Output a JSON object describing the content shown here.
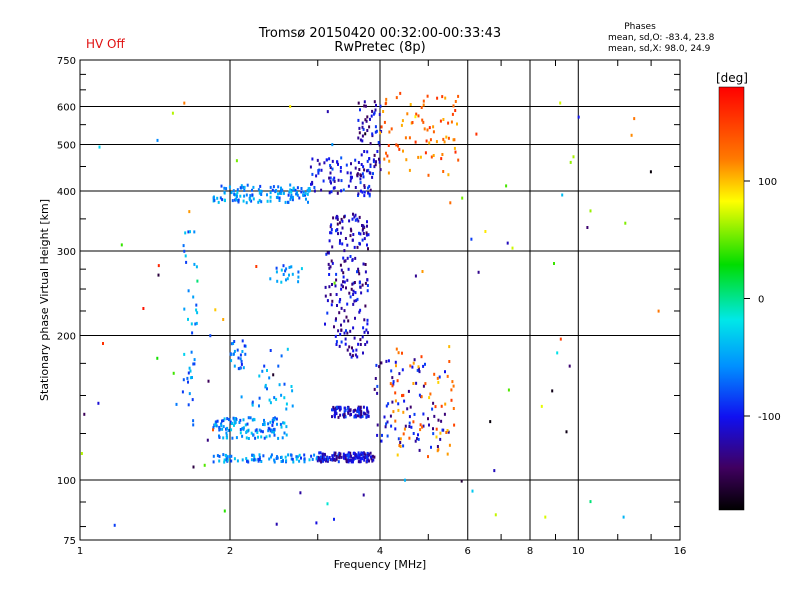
{
  "status": {
    "hv": "HV Off"
  },
  "header": {
    "title_line1": "Tromsø 20150420 00:32:00-00:33:43",
    "title_line2": "RwPretec (8p)"
  },
  "phases": {
    "heading": "Phases",
    "o_mode": "mean, sd,O:  -83.4, 23.8",
    "x_mode": "mean, sd,X:  98.0, 24.9"
  },
  "colorbar": {
    "unit": "[deg]",
    "ticks": [
      "100",
      "0",
      "-100"
    ],
    "tick_values": [
      100,
      0,
      -100
    ],
    "range": [
      -180,
      180
    ]
  },
  "chart_data": {
    "type": "scatter",
    "title": "Tromsø 20150420 00:32:00-00:33:43",
    "subtitle": "RwPretec (8p)",
    "xlabel": "Frequency [MHz]",
    "ylabel": "Stationary phase Virtual Height [km]",
    "x_scale": "log",
    "y_scale": "log",
    "xlim": [
      1,
      16
    ],
    "ylim": [
      75,
      750
    ],
    "x_ticks": [
      "1",
      "2",
      "4",
      "6",
      "8",
      "10",
      "16"
    ],
    "y_ticks": [
      "75",
      "100",
      "200",
      "300",
      "400",
      "500",
      "600",
      "750"
    ],
    "grid": true,
    "color_variable": "phase [deg]",
    "clusters": [
      {
        "f": [
          1.85,
          2.9
        ],
        "h": [
          378,
          412
        ],
        "phase": -60,
        "count": 130
      },
      {
        "f": [
          2.9,
          3.9
        ],
        "h": [
          390,
          470
        ],
        "phase": -105,
        "count": 90
      },
      {
        "f": [
          3.6,
          4.05
        ],
        "h": [
          430,
          640
        ],
        "phase": -115,
        "count": 60
      },
      {
        "f": [
          4.0,
          5.8
        ],
        "h": [
          430,
          640
        ],
        "phase": 130,
        "count": 80
      },
      {
        "f": [
          1.85,
          2.6
        ],
        "h": [
          122,
          135
        ],
        "phase": -60,
        "count": 120
      },
      {
        "f": [
          1.85,
          3.0
        ],
        "h": [
          109,
          113
        ],
        "phase": -60,
        "count": 80
      },
      {
        "f": [
          3.0,
          3.9
        ],
        "h": [
          109,
          114
        ],
        "phase": -110,
        "count": 150
      },
      {
        "f": [
          3.2,
          3.8
        ],
        "h": [
          135,
          142
        ],
        "phase": -110,
        "count": 90
      },
      {
        "f": [
          3.1,
          3.8
        ],
        "h": [
          180,
          360
        ],
        "phase": -115,
        "count": 200
      },
      {
        "f": [
          3.9,
          5.5
        ],
        "h": [
          115,
          180
        ],
        "phase": -110,
        "count": 80
      },
      {
        "f": [
          4.2,
          5.7
        ],
        "h": [
          110,
          190
        ],
        "phase": 120,
        "count": 60
      },
      {
        "f": [
          1.6,
          1.72
        ],
        "h": [
          130,
          330
        ],
        "phase": -60,
        "count": 40
      },
      {
        "f": [
          2.0,
          2.15
        ],
        "h": [
          170,
          195
        ],
        "phase": -70,
        "count": 25
      },
      {
        "f": [
          2.4,
          2.8
        ],
        "h": [
          255,
          280
        ],
        "phase": -60,
        "count": 20
      },
      {
        "f": [
          2.2,
          2.7
        ],
        "h": [
          140,
          190
        ],
        "phase": -60,
        "count": 30
      },
      {
        "f": [
          1.0,
          16.0
        ],
        "h": [
          80,
          620
        ],
        "phase": 0,
        "count": 90
      }
    ]
  }
}
